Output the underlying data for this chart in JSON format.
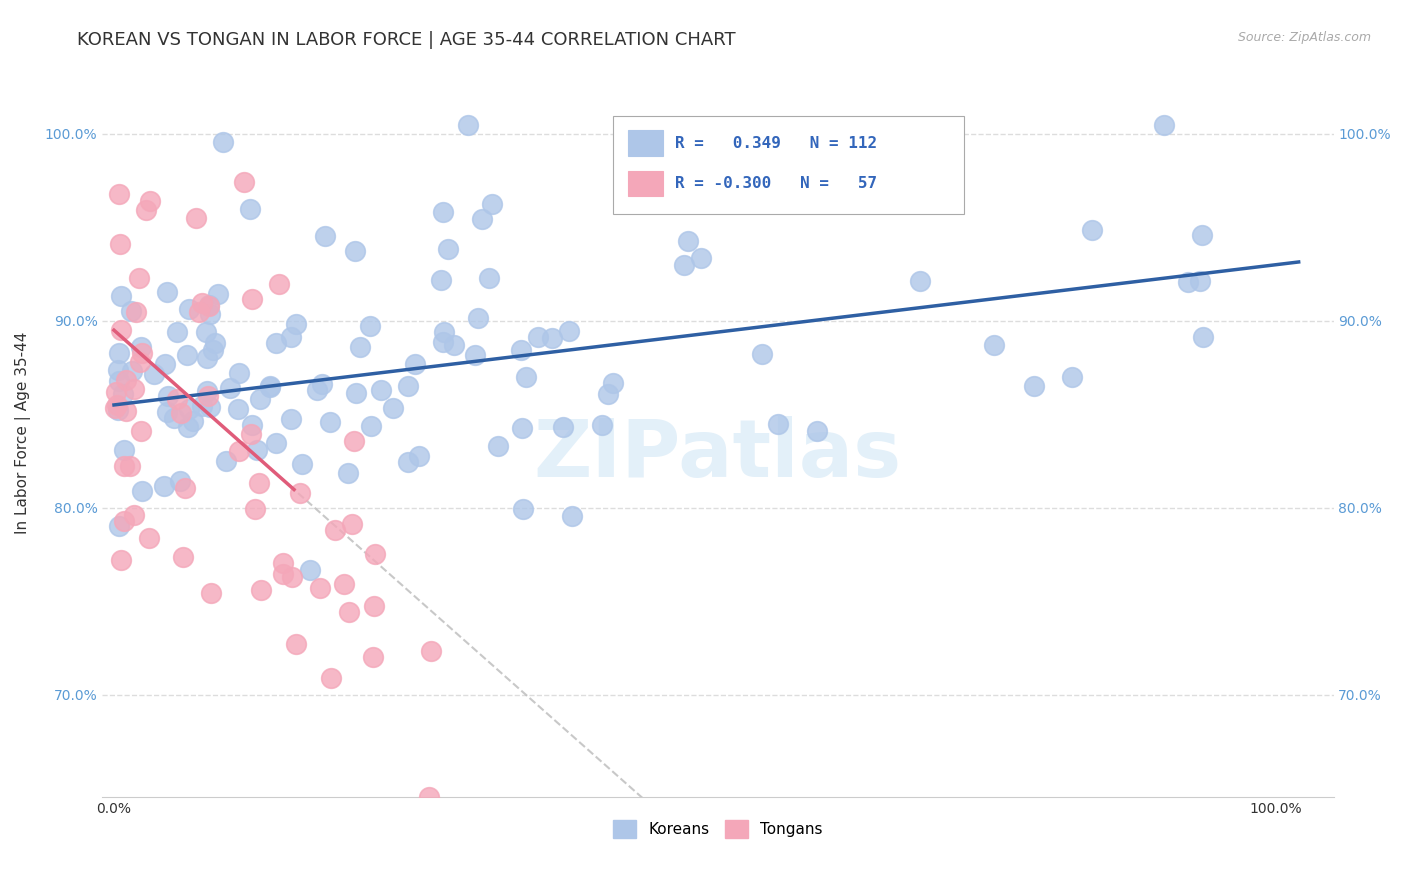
{
  "title": "KOREAN VS TONGAN IN LABOR FORCE | AGE 35-44 CORRELATION CHART",
  "source": "Source: ZipAtlas.com",
  "ylabel": "In Labor Force | Age 35-44",
  "xlim": [
    -0.01,
    1.05
  ],
  "ylim": [
    0.645,
    1.035
  ],
  "yticks": [
    0.7,
    0.8,
    0.9,
    1.0
  ],
  "ytick_labels": [
    "70.0%",
    "80.0%",
    "90.0%",
    "100.0%"
  ],
  "xticks": [
    0.0,
    1.0
  ],
  "xtick_labels": [
    "0.0%",
    "100.0%"
  ],
  "korean_R": 0.349,
  "korean_N": 112,
  "tongan_R": -0.3,
  "tongan_N": 57,
  "korean_color": "#aec6e8",
  "tongan_color": "#f4a7b9",
  "korean_line_color": "#2e5fa3",
  "tongan_line_color": "#e05c7a",
  "background_color": "#ffffff",
  "grid_color": "#dddddd",
  "title_fontsize": 13,
  "axis_label_fontsize": 11,
  "tick_fontsize": 10,
  "watermark": "ZIPatlas"
}
